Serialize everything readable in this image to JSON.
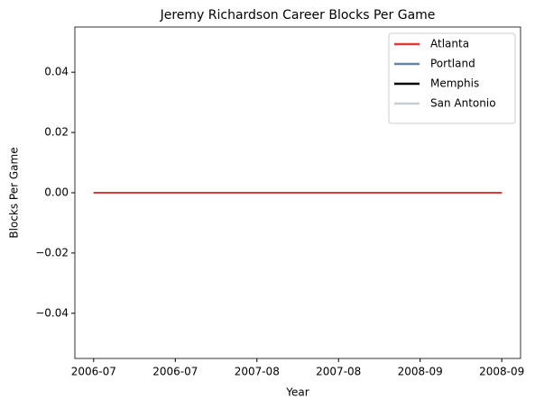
{
  "chart_data": {
    "type": "line",
    "title": "Jeremy Richardson Career Blocks Per Game",
    "xlabel": "Year",
    "ylabel": "Blocks Per Game",
    "x": [
      0,
      0.5,
      1
    ],
    "series": [
      {
        "name": "Atlanta",
        "color": "#e03a3e",
        "values": [
          0,
          0,
          0
        ]
      },
      {
        "name": "Portland",
        "color": "#5b87b5",
        "values": [
          0,
          0,
          0
        ]
      },
      {
        "name": "Memphis",
        "color": "#000000",
        "values": [
          0,
          0,
          0
        ]
      },
      {
        "name": "San Antonio",
        "color": "#c4ced4",
        "values": [
          0,
          0,
          0
        ]
      }
    ],
    "xlim": [
      -0.046,
      1.046
    ],
    "xticks": [
      {
        "value": 0,
        "label": "2006-07"
      },
      {
        "value": 0.2,
        "label": "2006-07"
      },
      {
        "value": 0.4,
        "label": "2007-08"
      },
      {
        "value": 0.6,
        "label": "2007-08"
      },
      {
        "value": 0.8,
        "label": "2008-09"
      },
      {
        "value": 1,
        "label": "2008-09"
      }
    ],
    "ylim": [
      -0.055,
      0.055
    ],
    "yticks": [
      {
        "value": -0.04,
        "label": "−0.04"
      },
      {
        "value": -0.02,
        "label": "−0.02"
      },
      {
        "value": 0,
        "label": "0.00"
      },
      {
        "value": 0.02,
        "label": "0.02"
      },
      {
        "value": 0.04,
        "label": "0.04"
      }
    ],
    "legend": "upper right",
    "grid": false
  }
}
